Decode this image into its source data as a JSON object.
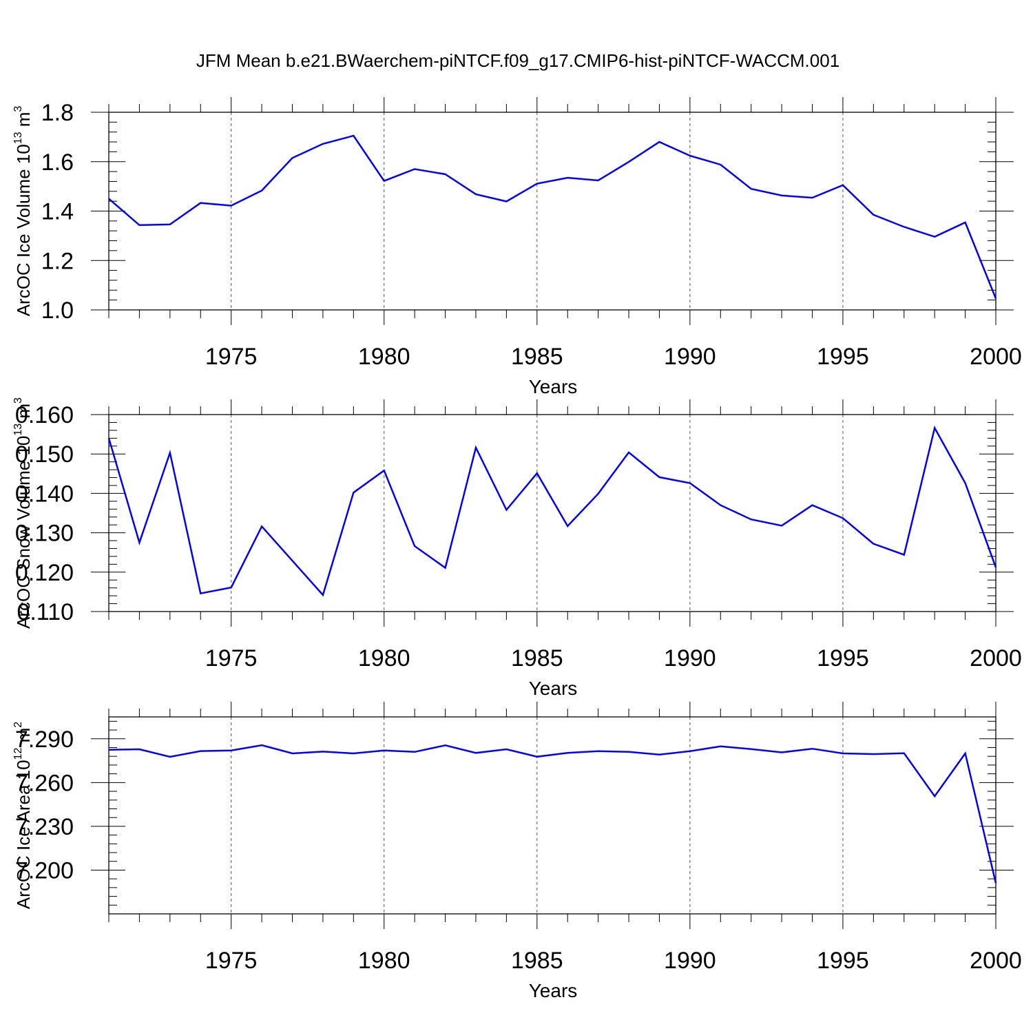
{
  "title": "JFM Mean b.e21.BWaerchem-piNTCF.f09_g17.CMIP6-hist-piNTCF-WACCM.001",
  "colors": {
    "line": "#0000ff",
    "axis": "#000000",
    "grid": "#555555"
  },
  "chart_data": [
    {
      "type": "line",
      "title": "",
      "xlabel": "Years",
      "ylabel": "ArcOC Ice Volume 10",
      "ylabel_sup": "13",
      "ylabel_units": " m",
      "ylabel_units_sup": "3",
      "xlim": [
        1971,
        2000
      ],
      "ylim": [
        1.0,
        1.8
      ],
      "x_ticks": [
        1975,
        1980,
        1985,
        1990,
        1995,
        2000
      ],
      "x_tick_labels": [
        "1975",
        "1980",
        "1985",
        "1990",
        "1995",
        "2000"
      ],
      "y_ticks": [
        1.0,
        1.2,
        1.4,
        1.6,
        1.8
      ],
      "y_tick_labels": [
        "1.0",
        "1.2",
        "1.4",
        "1.6",
        "1.8"
      ],
      "y_minor_step": 0.04,
      "grid": "x-dashed",
      "series": [
        {
          "name": "ArcOC Ice Volume",
          "x": [
            1971,
            1972,
            1973,
            1974,
            1975,
            1976,
            1977,
            1978,
            1979,
            1980,
            1981,
            1982,
            1983,
            1984,
            1985,
            1986,
            1987,
            1988,
            1989,
            1990,
            1991,
            1992,
            1993,
            1994,
            1995,
            1996,
            1997,
            1998,
            1999,
            2000
          ],
          "values": [
            1.45,
            1.343,
            1.346,
            1.433,
            1.422,
            1.483,
            1.615,
            1.672,
            1.705,
            1.522,
            1.57,
            1.549,
            1.468,
            1.439,
            1.511,
            1.535,
            1.524,
            1.599,
            1.68,
            1.624,
            1.588,
            1.49,
            1.463,
            1.454,
            1.505,
            1.385,
            1.336,
            1.296,
            1.354,
            1.046
          ]
        }
      ]
    },
    {
      "type": "line",
      "title": "",
      "xlabel": "Years",
      "ylabel": "ArcOC Snow Volume 10",
      "ylabel_sup": "13",
      "ylabel_units": " m",
      "ylabel_units_sup": "3",
      "xlim": [
        1971,
        2000
      ],
      "ylim": [
        0.11,
        0.16
      ],
      "x_ticks": [
        1975,
        1980,
        1985,
        1990,
        1995,
        2000
      ],
      "x_tick_labels": [
        "1975",
        "1980",
        "1985",
        "1990",
        "1995",
        "2000"
      ],
      "y_ticks": [
        0.11,
        0.12,
        0.13,
        0.14,
        0.15,
        0.16
      ],
      "y_tick_labels": [
        "0.110",
        "0.120",
        "0.130",
        "0.140",
        "0.150",
        "0.160"
      ],
      "y_minor_step": 0.002,
      "grid": "x-dashed",
      "series": [
        {
          "name": "ArcOC Snow Volume",
          "x": [
            1971,
            1972,
            1973,
            1974,
            1975,
            1976,
            1977,
            1978,
            1979,
            1980,
            1981,
            1982,
            1983,
            1984,
            1985,
            1986,
            1987,
            1988,
            1989,
            1990,
            1991,
            1992,
            1993,
            1994,
            1995,
            1996,
            1997,
            1998,
            1999,
            2000
          ],
          "values": [
            0.154,
            0.1275,
            0.1503,
            0.1146,
            0.1161,
            0.1316,
            0.1229,
            0.1142,
            0.1402,
            0.1458,
            0.1266,
            0.1211,
            0.1516,
            0.1358,
            0.1451,
            0.1317,
            0.1399,
            0.1504,
            0.1441,
            0.1426,
            0.137,
            0.1334,
            0.1318,
            0.137,
            0.1337,
            0.1272,
            0.1244,
            0.1566,
            0.1426,
            0.1212
          ]
        }
      ]
    },
    {
      "type": "line",
      "title": "",
      "xlabel": "Years",
      "ylabel": "ArcOC Ice Area 10",
      "ylabel_sup": "12",
      "ylabel_units": " m",
      "ylabel_units_sup": "2",
      "xlim": [
        1971,
        2000
      ],
      "ylim": [
        7.17,
        7.305
      ],
      "x_ticks": [
        1975,
        1980,
        1985,
        1990,
        1995,
        2000
      ],
      "x_tick_labels": [
        "1975",
        "1980",
        "1985",
        "1990",
        "1995",
        "2000"
      ],
      "y_ticks": [
        7.2,
        7.23,
        7.26,
        7.29
      ],
      "y_tick_labels": [
        "7.200",
        "7.230",
        "7.260",
        "7.290"
      ],
      "y_minor_step": 0.006,
      "grid": "x-dashed",
      "series": [
        {
          "name": "ArcOC Ice Area",
          "x": [
            1971,
            1972,
            1973,
            1974,
            1975,
            1976,
            1977,
            1978,
            1979,
            1980,
            1981,
            1982,
            1983,
            1984,
            1985,
            1986,
            1987,
            1988,
            1989,
            1990,
            1991,
            1992,
            1993,
            1994,
            1995,
            1996,
            1997,
            1998,
            1999,
            2000
          ],
          "values": [
            7.2825,
            7.2828,
            7.2776,
            7.2816,
            7.282,
            7.2856,
            7.28,
            7.2812,
            7.28,
            7.282,
            7.281,
            7.2855,
            7.2803,
            7.2828,
            7.2777,
            7.2803,
            7.2815,
            7.281,
            7.2792,
            7.2815,
            7.2848,
            7.2829,
            7.2807,
            7.2832,
            7.28,
            7.2795,
            7.2801,
            7.2506,
            7.28,
            7.1911
          ]
        }
      ]
    }
  ]
}
